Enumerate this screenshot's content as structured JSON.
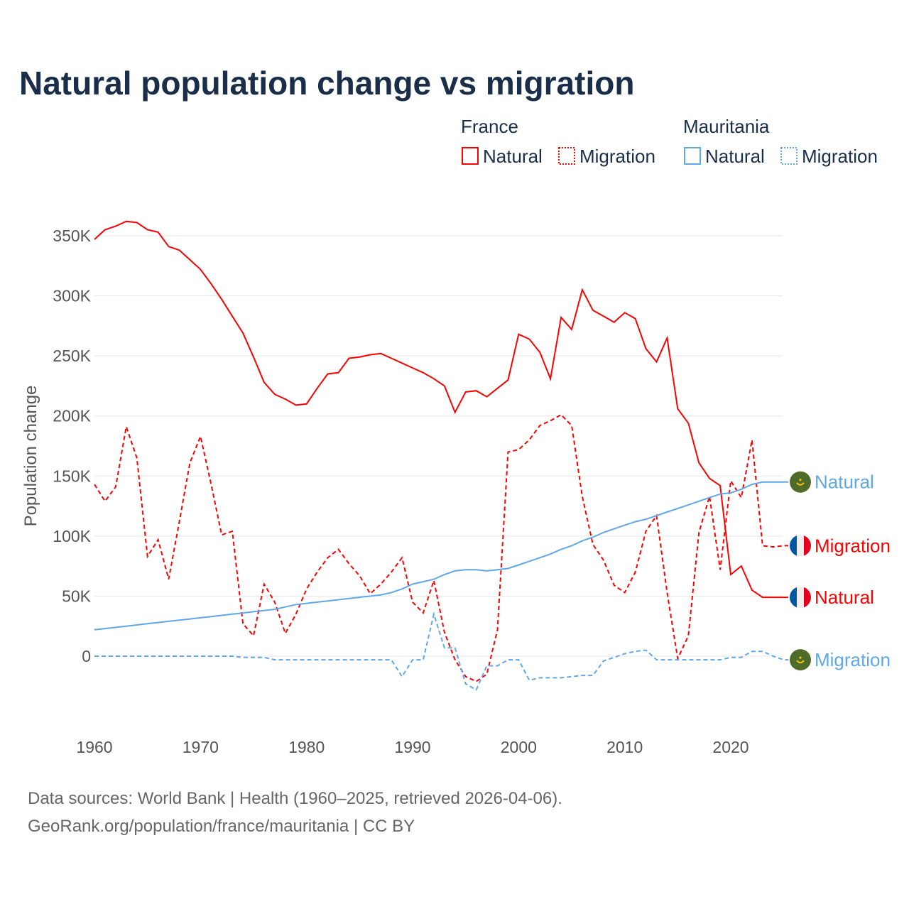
{
  "title": "Natural population change vs migration",
  "legend": {
    "groups": [
      {
        "country": "France",
        "items": [
          "Natural",
          "Migration"
        ]
      },
      {
        "country": "Mauritania",
        "items": [
          "Natural",
          "Migration"
        ]
      }
    ]
  },
  "footer": {
    "line1": "Data sources: World Bank | Health (1960–2025, retrieved 2026-04-06).",
    "line2": "GeoRank.org/population/france/mauritania | CC BY"
  },
  "colors": {
    "france": "#ff0000",
    "mauritania": "#5fa8e8",
    "grid": "#e6e6e6",
    "title": "#1a2e4a"
  },
  "chart_data": {
    "type": "line",
    "title": "Natural population change vs migration",
    "xlabel": "",
    "ylabel": "Population change",
    "unit": "thousands",
    "xlim": [
      1960,
      2025
    ],
    "ylim": [
      -40,
      360
    ],
    "xticks": [
      1960,
      1970,
      1980,
      1990,
      2000,
      2010,
      2020
    ],
    "xtick_labels": [
      "1960",
      "1970",
      "1980",
      "1990",
      "2000",
      "2010",
      "2020"
    ],
    "yticks": [
      0,
      50,
      100,
      150,
      200,
      250,
      300,
      350
    ],
    "ytick_labels": [
      "0",
      "50K",
      "100K",
      "150K",
      "200K",
      "250K",
      "300K",
      "350K"
    ],
    "grid": true,
    "legend_position": "top-right",
    "series": [
      {
        "name": "France Natural",
        "label": "Natural",
        "country": "France",
        "style": "solid",
        "start": 1960,
        "values": [
          347,
          355,
          358,
          362,
          361,
          355,
          353,
          341,
          338,
          330,
          322,
          310,
          297,
          283,
          269,
          249,
          228,
          218,
          214,
          209,
          210,
          223,
          235,
          236,
          248,
          249,
          251,
          252,
          248,
          244,
          240,
          236,
          231,
          225,
          203,
          220,
          221,
          216,
          223,
          230,
          268,
          264,
          253,
          231,
          282,
          272,
          305,
          288,
          283,
          278,
          286,
          281,
          256,
          245,
          265,
          206,
          194,
          161,
          148,
          142,
          68,
          75,
          55,
          49
        ]
      },
      {
        "name": "France Migration",
        "label": "Migration",
        "country": "France",
        "style": "dashed",
        "start": 1960,
        "values": [
          143,
          129,
          141,
          191,
          165,
          83,
          97,
          64,
          112,
          161,
          183,
          143,
          101,
          104,
          27,
          17,
          60,
          45,
          19,
          35,
          56,
          70,
          82,
          89,
          77,
          67,
          52,
          60,
          70,
          82,
          45,
          36,
          63,
          20,
          -3,
          -17,
          -21,
          -15,
          22,
          170,
          172,
          180,
          192,
          196,
          201,
          192,
          133,
          93,
          80,
          59,
          53,
          70,
          104,
          117,
          53,
          -2,
          17,
          103,
          133,
          72,
          146,
          132,
          180,
          92,
          91,
          92
        ]
      },
      {
        "name": "Mauritania Natural",
        "label": "Natural",
        "country": "Mauritania",
        "style": "solid",
        "start": 1960,
        "values": [
          22,
          23,
          24,
          25,
          26,
          27,
          28,
          29,
          30,
          31,
          32,
          33,
          34,
          35,
          36,
          37,
          38,
          39,
          41,
          43,
          44,
          45,
          46,
          47,
          48,
          49,
          50,
          51,
          53,
          56,
          60,
          62,
          64,
          68,
          71,
          72,
          72,
          71,
          72,
          73,
          76,
          79,
          82,
          85,
          89,
          92,
          96,
          99,
          103,
          106,
          109,
          112,
          114,
          117,
          120,
          123,
          126,
          129,
          132,
          135,
          136,
          139,
          143,
          145,
          145
        ]
      },
      {
        "name": "Mauritania Migration",
        "label": "Migration",
        "country": "Mauritania",
        "style": "dashed",
        "start": 1960,
        "values": [
          0,
          0,
          0,
          0,
          0,
          0,
          0,
          0,
          0,
          0,
          0,
          0,
          0,
          0,
          -1,
          -1,
          -1,
          -3,
          -3,
          -3,
          -3,
          -3,
          -3,
          -3,
          -3,
          -3,
          -3,
          -3,
          -3,
          -17,
          -3,
          -3,
          35,
          7,
          7,
          -23,
          -28,
          -8,
          -8,
          -3,
          -3,
          -20,
          -18,
          -18,
          -18,
          -17,
          -16,
          -16,
          -4,
          -1,
          2,
          4,
          5,
          -3,
          -3,
          -3,
          -3,
          -3,
          -3,
          -3,
          -1,
          -1,
          4,
          4,
          0,
          -3
        ]
      }
    ]
  }
}
